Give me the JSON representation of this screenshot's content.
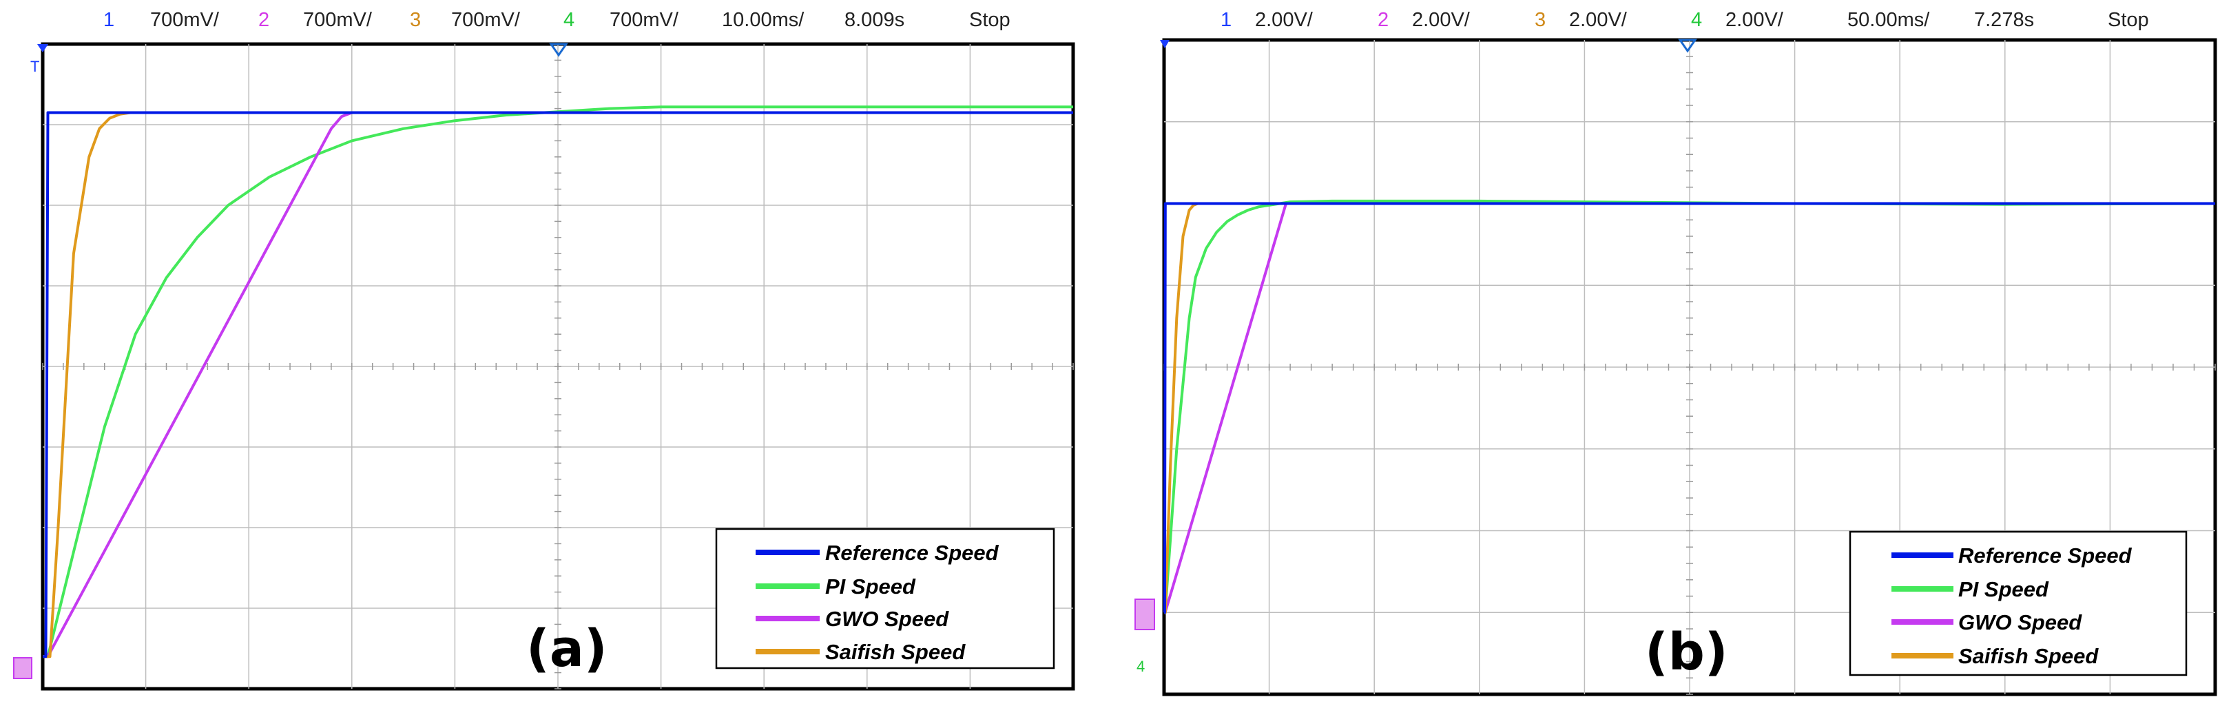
{
  "chart_data": [
    {
      "type": "line",
      "panel_label": "(a)",
      "header": {
        "ch1_num": "1",
        "ch1_scale": "700mV/",
        "ch2_num": "2",
        "ch2_scale": "700mV/",
        "ch3_num": "3",
        "ch3_scale": "700mV/",
        "ch4_num": "4",
        "ch4_scale": "700mV/",
        "timebase": "10.00ms/",
        "position": "8.009s",
        "status": "Stop"
      },
      "xlim": [
        0,
        100
      ],
      "ylim": [
        -4,
        4
      ],
      "grid": true,
      "legend_position": "bottom-right",
      "series": [
        {
          "name": "Reference Speed",
          "color": "#0018e6",
          "x": [
            0,
            0.3,
            0.5,
            100
          ],
          "y": [
            -3.6,
            -3.6,
            3.15,
            3.15
          ]
        },
        {
          "name": "PI Speed",
          "color": "#44e85a",
          "x": [
            0,
            0.5,
            3,
            6,
            9,
            12,
            15,
            18,
            22,
            26,
            30,
            35,
            40,
            45,
            50,
            55,
            60,
            70,
            80,
            90,
            100
          ],
          "y": [
            -3.6,
            -3.6,
            -2.3,
            -0.75,
            0.4,
            1.1,
            1.6,
            2.0,
            2.35,
            2.6,
            2.8,
            2.95,
            3.05,
            3.12,
            3.16,
            3.2,
            3.22,
            3.22,
            3.22,
            3.22,
            3.22
          ]
        },
        {
          "name": "GWO Speed",
          "color": "#c53af0",
          "x": [
            0,
            0.5,
            28,
            29,
            30,
            100
          ],
          "y": [
            -3.6,
            -3.6,
            2.95,
            3.1,
            3.15,
            3.15
          ]
        },
        {
          "name": "Saifish Speed",
          "color": "#e09a1c",
          "x": [
            0,
            0.7,
            1.5,
            3,
            4.5,
            5.5,
            6.5,
            7.5,
            8.5,
            10,
            100
          ],
          "y": [
            -3.6,
            -3.6,
            -2.0,
            1.4,
            2.6,
            2.95,
            3.08,
            3.13,
            3.15,
            3.15,
            3.15
          ]
        }
      ]
    },
    {
      "type": "line",
      "panel_label": "(b)",
      "header": {
        "ch1_num": "1",
        "ch1_scale": "2.00V/",
        "ch2_num": "2",
        "ch2_scale": "2.00V/",
        "ch3_num": "3",
        "ch3_scale": "2.00V/",
        "ch4_num": "4",
        "ch4_scale": "2.00V/",
        "timebase": "50.00ms/",
        "position": "7.278s",
        "status": "Stop"
      },
      "xlim": [
        0,
        500
      ],
      "ylim": [
        -4,
        4
      ],
      "grid": true,
      "legend_position": "bottom-right",
      "series": [
        {
          "name": "Reference Speed",
          "color": "#0018e6",
          "x": [
            0,
            0.3,
            0.6,
            500
          ],
          "y": [
            -3.0,
            -3.0,
            2.0,
            2.0
          ]
        },
        {
          "name": "PI Speed",
          "color": "#44e85a",
          "x": [
            0,
            0.5,
            3,
            6,
            9,
            12,
            15,
            20,
            25,
            30,
            35,
            40,
            45,
            50,
            60,
            80,
            100,
            150,
            200,
            300,
            400,
            500
          ],
          "y": [
            -3.0,
            -3.0,
            -2.1,
            -1.0,
            -0.2,
            0.6,
            1.1,
            1.45,
            1.65,
            1.78,
            1.86,
            1.92,
            1.96,
            1.98,
            2.02,
            2.03,
            2.03,
            2.03,
            2.02,
            2.0,
            1.99,
            2.0
          ]
        },
        {
          "name": "GWO Speed",
          "color": "#c53af0",
          "x": [
            0,
            0.5,
            4,
            58,
            60,
            500
          ],
          "y": [
            -3.0,
            -3.0,
            -2.7,
            2.0,
            2.0,
            2.0
          ]
        },
        {
          "name": "Saifish Speed",
          "color": "#e09a1c",
          "x": [
            0,
            0.6,
            3,
            6,
            9,
            12,
            14,
            16,
            20,
            500
          ],
          "y": [
            -3.0,
            -3.0,
            -1.2,
            0.6,
            1.6,
            1.92,
            1.98,
            2.0,
            2.0,
            2.0
          ]
        }
      ]
    }
  ]
}
